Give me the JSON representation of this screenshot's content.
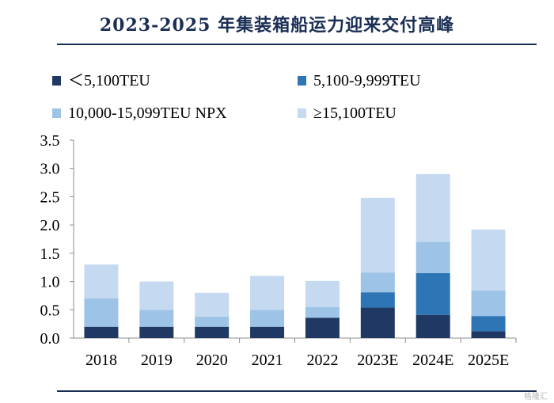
{
  "title": "2023-2025 年集装箱船运力迎来交付高峰",
  "watermark": "格隆汇",
  "colors": {
    "title": "#1b2f55",
    "series": [
      "#1f3864",
      "#2e75b6",
      "#9dc3e6",
      "#c5d9f0"
    ],
    "axis": "#8c8c8c"
  },
  "chart_data": {
    "type": "bar",
    "stacked": true,
    "categories": [
      "2018",
      "2019",
      "2020",
      "2021",
      "2022",
      "2023E",
      "2024E",
      "2025E"
    ],
    "series": [
      {
        "name": "＜5,100TEU",
        "values": [
          0.2,
          0.2,
          0.2,
          0.2,
          0.36,
          0.54,
          0.41,
          0.12
        ]
      },
      {
        "name": "5,100-9,999TEU",
        "values": [
          0.0,
          0.0,
          0.0,
          0.0,
          0.0,
          0.27,
          0.74,
          0.27
        ]
      },
      {
        "name": "10,000-15,099TEU NPX",
        "values": [
          0.5,
          0.3,
          0.18,
          0.3,
          0.19,
          0.35,
          0.55,
          0.45
        ]
      },
      {
        "name": "≥15,100TEU",
        "values": [
          0.6,
          0.5,
          0.42,
          0.6,
          0.46,
          1.32,
          1.2,
          1.08
        ]
      }
    ],
    "yticks": [
      "0.0",
      "0.5",
      "1.0",
      "1.5",
      "2.0",
      "2.5",
      "3.0",
      "3.5"
    ],
    "ylim": [
      0,
      3.5
    ],
    "legend_position": "top"
  }
}
